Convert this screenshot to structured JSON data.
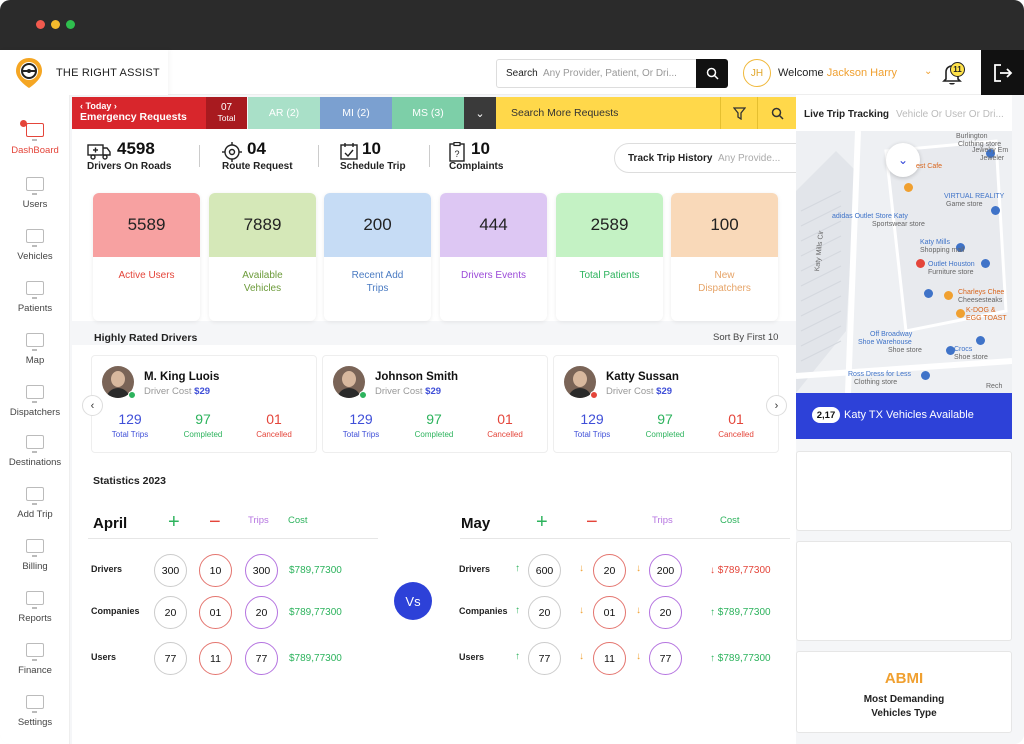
{
  "app": {
    "brand": "THE RIGHT ASSIST"
  },
  "header": {
    "search_label": "Search",
    "search_placeholder": "Any Provider, Patient, Or Dri...",
    "avatar_initials": "JH",
    "welcome": "Welcome",
    "user_name": "Jackson Harry",
    "notifications": "11"
  },
  "sidebar": {
    "items": [
      "DashBoard",
      "Users",
      "Vehicles",
      "Patients",
      "Map",
      "Dispatchers",
      "Destinations",
      "Add Trip",
      "Billing",
      "Reports",
      "Finance",
      "Settings"
    ]
  },
  "tabs": {
    "today": "Today",
    "emergency": "Emergency Requests",
    "total_num": "07",
    "total_label": "Total",
    "ar": "AR (2)",
    "mi": "MI (2)",
    "ms": "MS (3)",
    "search_more": "Search More Requests"
  },
  "stats": {
    "drivers_num": "4598",
    "drivers_label": "Drivers On Roads",
    "route_num": "04",
    "route_label": "Route Request",
    "schedule_num": "10",
    "schedule_label": "Schedule Trip",
    "complaints_num": "10",
    "complaints_label": "Complaints",
    "track_title": "Track Trip History",
    "track_placeholder": "Any Provide..."
  },
  "cards": [
    {
      "value": "5589",
      "label": "Active Users",
      "bg": "#f7a1a1",
      "color": "#e4453a"
    },
    {
      "value": "7889",
      "label": "Available Vehicles",
      "bg": "#d5e8b8",
      "color": "#6c9b3a"
    },
    {
      "value": "200",
      "label": "Recent Add Trips",
      "bg": "#c6dcf5",
      "color": "#4a7bc2"
    },
    {
      "value": "444",
      "label": "Drivers Events",
      "bg": "#ddc7f3",
      "color": "#9b4ad8"
    },
    {
      "value": "2589",
      "label": "Total Patients",
      "bg": "#c4f2c4",
      "color": "#2db35d"
    },
    {
      "value": "100",
      "label": "New Dispatchers",
      "bg": "#f9d9b9",
      "color": "#e6a468"
    }
  ],
  "drivers": {
    "title": "Highly Rated Drivers",
    "sort": "Sort By First 10",
    "cost_label": "Driver Cost",
    "list": [
      {
        "name": "M. King Luois",
        "cost": "$29",
        "trips": "129",
        "completed": "97",
        "cancelled": "01",
        "status": "#2db35d"
      },
      {
        "name": "Johnson Smith",
        "cost": "$29",
        "trips": "129",
        "completed": "97",
        "cancelled": "01",
        "status": "#2db35d"
      },
      {
        "name": "Katty Sussan",
        "cost": "$29",
        "trips": "129",
        "completed": "97",
        "cancelled": "01",
        "status": "#e4453a"
      }
    ],
    "lbl_trips": "Total Trips",
    "lbl_completed": "Completed",
    "lbl_cancelled": "Cancelled"
  },
  "statistics": {
    "title": "Statistics 2023",
    "trips": "Trips",
    "cost": "Cost",
    "vs": "Vs",
    "rows": [
      "Drivers",
      "Companies",
      "Users"
    ],
    "left": {
      "month": "April",
      "data": [
        [
          "300",
          "10",
          "300",
          "$789,77300"
        ],
        [
          "20",
          "01",
          "20",
          "$789,77300"
        ],
        [
          "77",
          "11",
          "77",
          "$789,77300"
        ]
      ]
    },
    "right": {
      "month": "May",
      "data": [
        [
          "600",
          "20",
          "200",
          "$789,77300"
        ],
        [
          "20",
          "01",
          "20",
          "$789,77300"
        ],
        [
          "77",
          "11",
          "77",
          "$789,77300"
        ]
      ]
    }
  },
  "map": {
    "title": "Live Trip Tracking",
    "placeholder": "Vehicle Or User Or Dri...",
    "vehicles_count": "2,17",
    "vehicles_text": "Katy TX Vehicles Available",
    "labels": [
      "Burlington",
      "Clothing store",
      "Jewelry Em",
      "Jeweler",
      "est Cafe",
      "VIRTUAL REALITY",
      "Game store",
      "adidas Outlet Store Katy",
      "Sportswear store",
      "Katy Mills",
      "Shopping mall",
      "Outlet Houston",
      "Furniture store",
      "Charleys Chee",
      "Cheesesteaks",
      "K-DOG &",
      "EGG TOAST",
      "Off Broadway",
      "Shoe Warehouse",
      "Shoe store",
      "Crocs",
      "Shoe store",
      "Ross Dress for Less",
      "Clothing store",
      "Rech",
      "Katy Mills Cir"
    ]
  },
  "abmi": {
    "title": "ABMI",
    "subtitle": "Most Demanding Vehicles Type"
  }
}
